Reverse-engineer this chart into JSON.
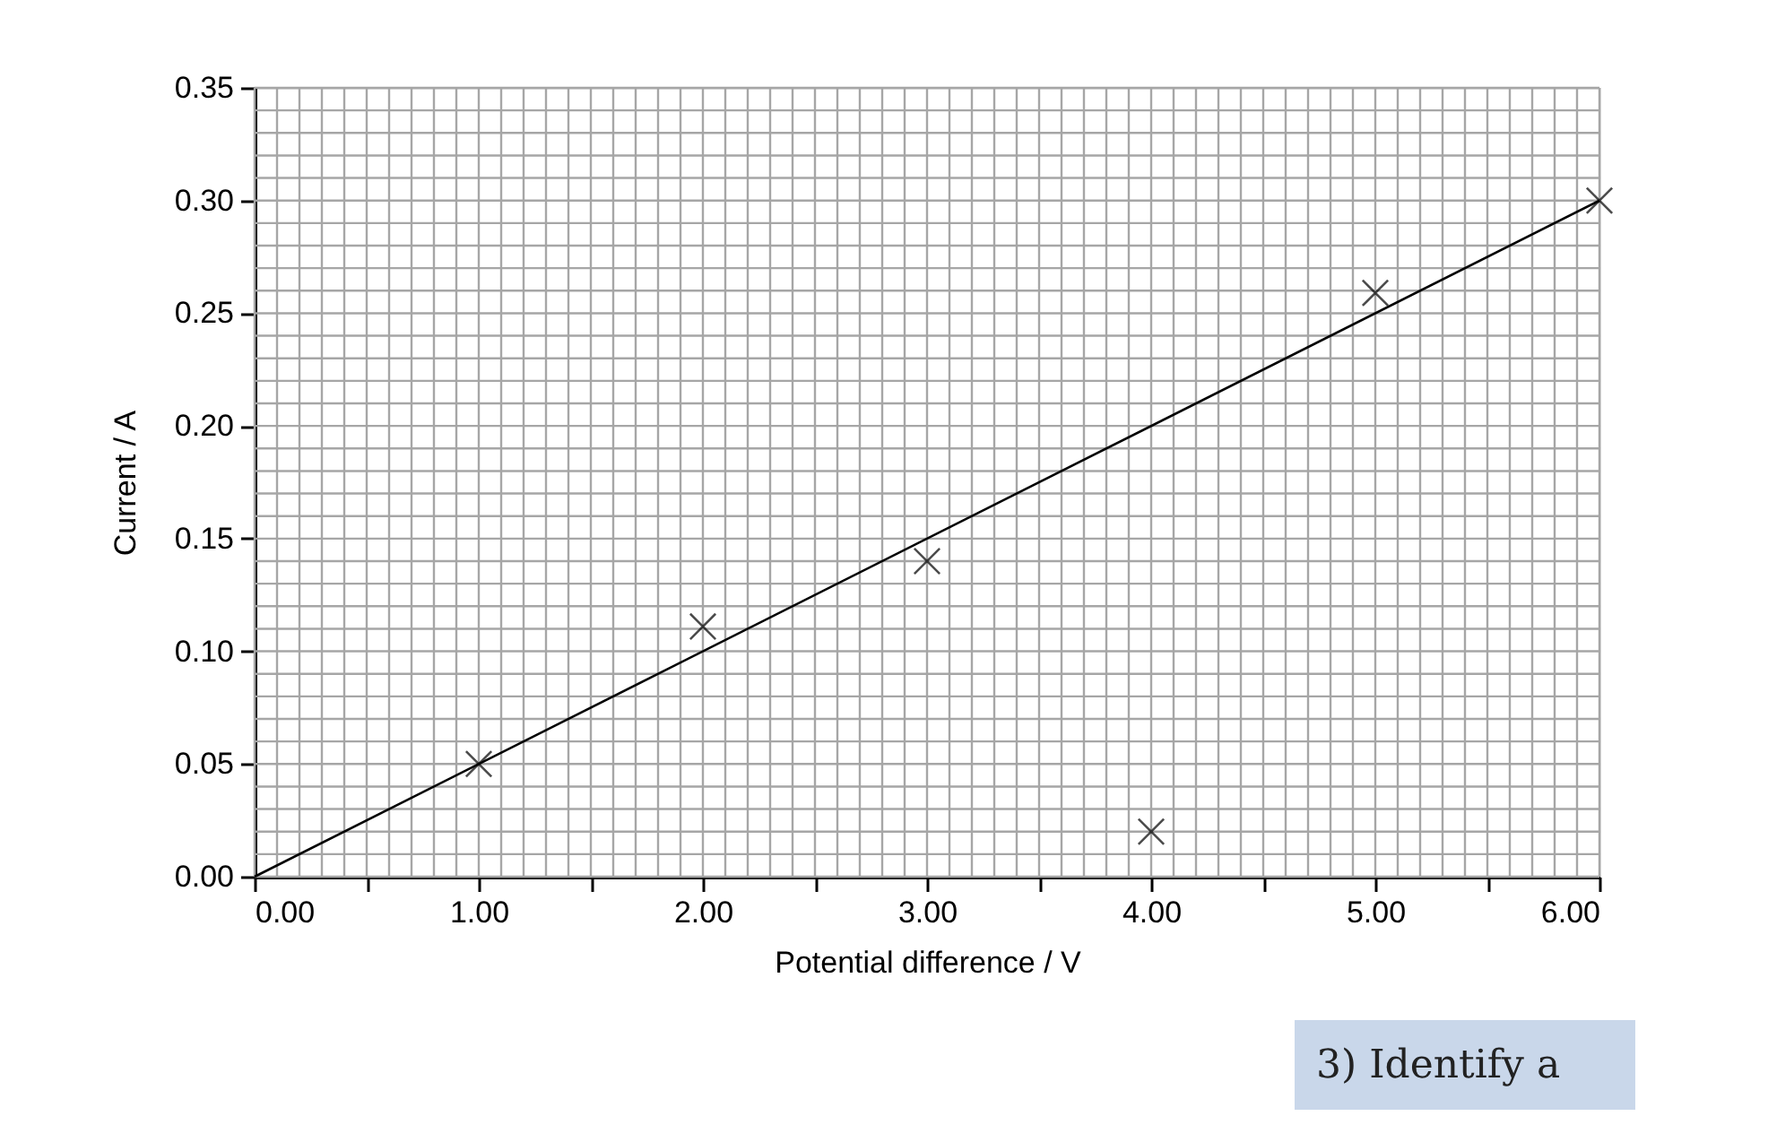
{
  "chart_data": {
    "type": "scatter",
    "xlabel": "Potential difference / V",
    "ylabel": "Current / A",
    "x": [
      1.0,
      2.0,
      3.0,
      4.0,
      5.0,
      6.0
    ],
    "series": [
      {
        "color": "#000000",
        "marker": "cross",
        "values": [
          0.05,
          0.111,
          0.14,
          0.02,
          0.259,
          0.3
        ]
      },
      {
        "type": "line",
        "color": "#000000",
        "x": [
          0.0,
          6.0
        ],
        "values": [
          0.0,
          0.3
        ]
      }
    ],
    "xlim": [
      0,
      6
    ],
    "ylim": [
      0,
      0.35
    ],
    "xticks": [
      {
        "value": 0,
        "label": "0.00"
      },
      {
        "value": 0.5,
        "label": null
      },
      {
        "value": 1,
        "label": "1.00"
      },
      {
        "value": 1.5,
        "label": null
      },
      {
        "value": 2,
        "label": "2.00"
      },
      {
        "value": 2.5,
        "label": null
      },
      {
        "value": 3,
        "label": "3.00"
      },
      {
        "value": 3.5,
        "label": null
      },
      {
        "value": 4,
        "label": "4.00"
      },
      {
        "value": 4.5,
        "label": null
      },
      {
        "value": 5,
        "label": "5.00"
      },
      {
        "value": 5.5,
        "label": null
      },
      {
        "value": 6,
        "label": "6.00"
      }
    ],
    "yticks": [
      {
        "value": 0,
        "label": "0.00"
      },
      {
        "value": 0.05,
        "label": "0.05"
      },
      {
        "value": 0.1,
        "label": "0.10"
      },
      {
        "value": 0.15,
        "label": "0.15"
      },
      {
        "value": 0.2,
        "label": "0.20"
      },
      {
        "value": 0.25,
        "label": "0.25"
      },
      {
        "value": 0.3,
        "label": "0.30"
      },
      {
        "value": 0.35,
        "label": "0.35"
      }
    ],
    "grid": true,
    "annotations": [
      "3) Identify a"
    ]
  }
}
